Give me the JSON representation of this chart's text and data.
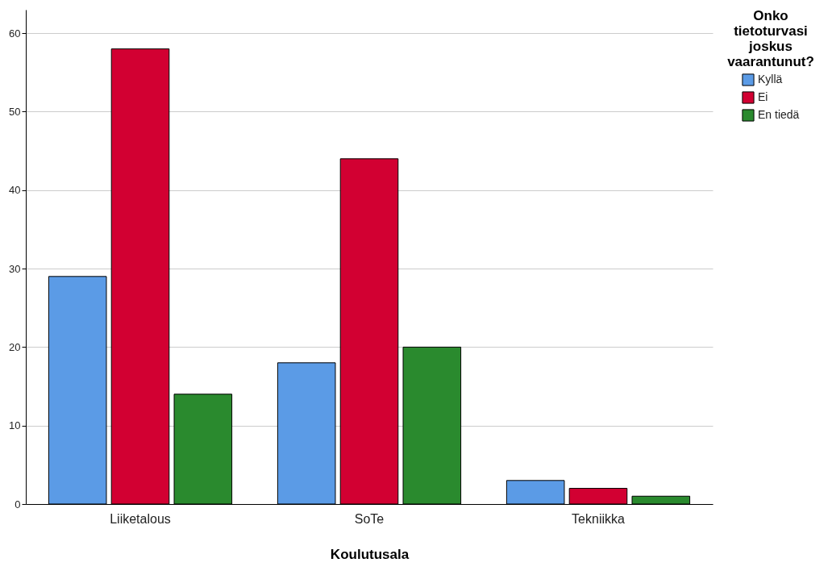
{
  "chart_data": {
    "type": "bar",
    "xlabel": "Koulutusala",
    "legend_title": "Onko tietoturvasi joskus vaarantunut?",
    "categories": [
      "Liiketalous",
      "SoTe",
      "Tekniikka"
    ],
    "series": [
      {
        "name": "Kyllä",
        "color": "#5b9be6",
        "values": [
          29,
          18,
          3
        ]
      },
      {
        "name": "Ei",
        "color": "#d20032",
        "values": [
          58,
          44,
          2
        ]
      },
      {
        "name": "En tiedä",
        "color": "#2a8a2e",
        "values": [
          14,
          20,
          1
        ]
      }
    ],
    "ylim": [
      0,
      63
    ],
    "yticks": [
      0,
      10,
      20,
      30,
      40,
      50,
      60
    ],
    "grid": "y",
    "legend": "top right"
  }
}
